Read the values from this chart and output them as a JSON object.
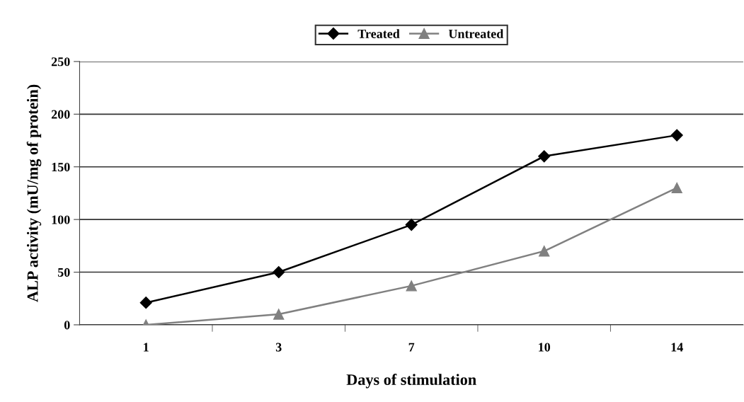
{
  "chart_data": {
    "type": "line",
    "xlabel": "Days of stimulation",
    "ylabel": "ALP activity (mU/mg of protein)",
    "categories": [
      "1",
      "3",
      "7",
      "10",
      "14"
    ],
    "series": [
      {
        "name": "Treated",
        "color": "#000000",
        "marker": "diamond",
        "values": [
          21,
          50,
          95,
          160,
          180
        ]
      },
      {
        "name": "Untreated",
        "color": "#808080",
        "marker": "triangle",
        "values": [
          0,
          10,
          37,
          70,
          130
        ]
      }
    ],
    "ylim": [
      0,
      250
    ],
    "yticks": [
      0,
      50,
      100,
      150,
      200,
      250
    ],
    "grid": "y",
    "legend": "top",
    "line_style": "solid"
  }
}
